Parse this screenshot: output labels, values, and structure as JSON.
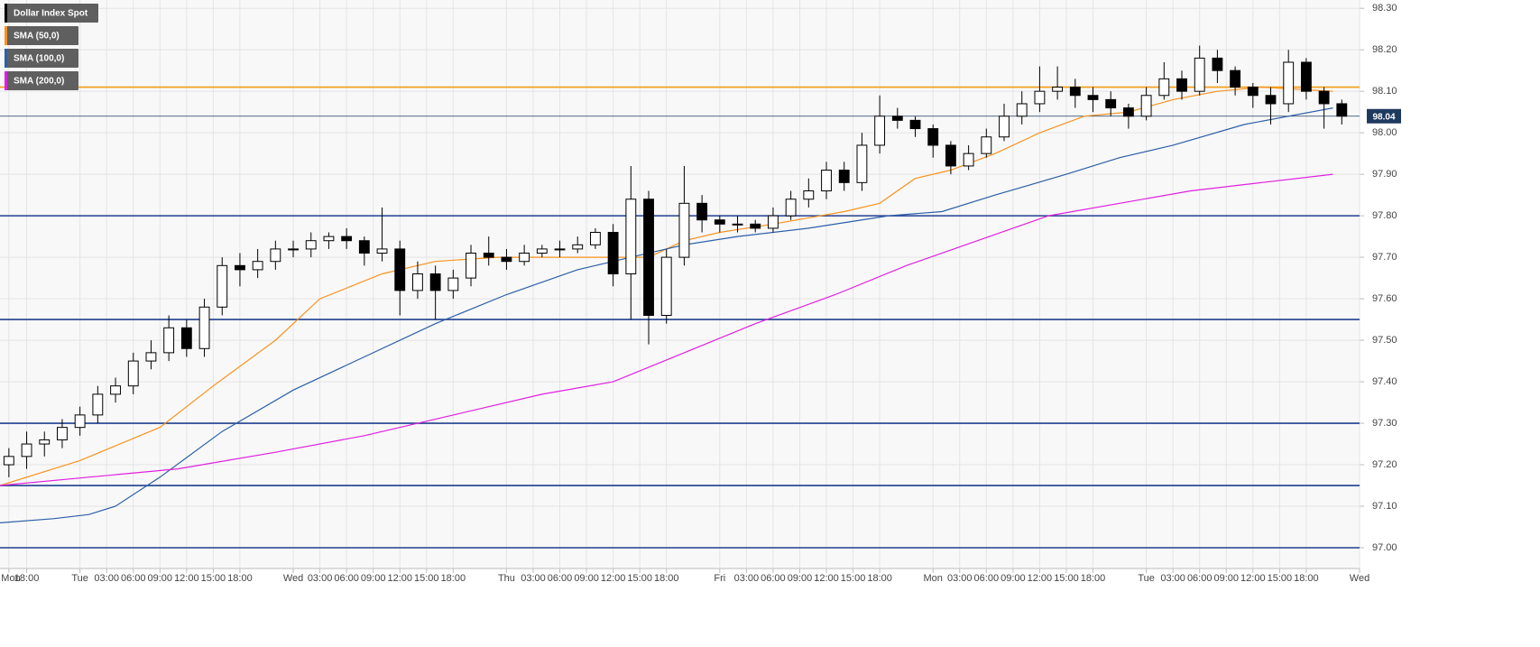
{
  "chart_data": {
    "type": "candlestick",
    "name": "Dollar Index Spot",
    "color": "#000000",
    "xlim": [
      15,
      168
    ],
    "ylim": [
      96.95,
      98.32
    ],
    "grid": true,
    "xticks": [
      {
        "value": 16,
        "label": "Mon"
      },
      {
        "value": 18,
        "label": "18:00"
      },
      {
        "value": 24,
        "label": "Tue"
      },
      {
        "value": 27,
        "label": "03:00"
      },
      {
        "value": 30,
        "label": "06:00"
      },
      {
        "value": 33,
        "label": "09:00"
      },
      {
        "value": 36,
        "label": "12:00"
      },
      {
        "value": 39,
        "label": "15:00"
      },
      {
        "value": 42,
        "label": "18:00"
      },
      {
        "value": 48,
        "label": "Wed"
      },
      {
        "value": 51,
        "label": "03:00"
      },
      {
        "value": 54,
        "label": "06:00"
      },
      {
        "value": 57,
        "label": "09:00"
      },
      {
        "value": 60,
        "label": "12:00"
      },
      {
        "value": 63,
        "label": "15:00"
      },
      {
        "value": 66,
        "label": "18:00"
      },
      {
        "value": 72,
        "label": "Thu"
      },
      {
        "value": 75,
        "label": "03:00"
      },
      {
        "value": 78,
        "label": "06:00"
      },
      {
        "value": 81,
        "label": "09:00"
      },
      {
        "value": 84,
        "label": "12:00"
      },
      {
        "value": 87,
        "label": "15:00"
      },
      {
        "value": 90,
        "label": "18:00"
      },
      {
        "value": 96,
        "label": "Fri"
      },
      {
        "value": 99,
        "label": "03:00"
      },
      {
        "value": 102,
        "label": "06:00"
      },
      {
        "value": 105,
        "label": "09:00"
      },
      {
        "value": 108,
        "label": "12:00"
      },
      {
        "value": 111,
        "label": "15:00"
      },
      {
        "value": 114,
        "label": "18:00"
      },
      {
        "value": 120,
        "label": "Mon"
      },
      {
        "value": 123,
        "label": "03:00"
      },
      {
        "value": 126,
        "label": "06:00"
      },
      {
        "value": 129,
        "label": "09:00"
      },
      {
        "value": 132,
        "label": "12:00"
      },
      {
        "value": 135,
        "label": "15:00"
      },
      {
        "value": 138,
        "label": "18:00"
      },
      {
        "value": 144,
        "label": "Tue"
      },
      {
        "value": 147,
        "label": "03:00"
      },
      {
        "value": 150,
        "label": "06:00"
      },
      {
        "value": 153,
        "label": "09:00"
      },
      {
        "value": 156,
        "label": "12:00"
      },
      {
        "value": 159,
        "label": "15:00"
      },
      {
        "value": 162,
        "label": "18:00"
      },
      {
        "value": 168,
        "label": "Wed"
      }
    ],
    "yticks": [
      {
        "value": 98.3,
        "label": "98.30"
      },
      {
        "value": 98.2,
        "label": "98.20"
      },
      {
        "value": 98.1,
        "label": "98.10"
      },
      {
        "value": 98.0,
        "label": "98.00"
      },
      {
        "value": 97.9,
        "label": "97.90"
      },
      {
        "value": 97.8,
        "label": "97.80"
      },
      {
        "value": 97.7,
        "label": "97.70"
      },
      {
        "value": 97.6,
        "label": "97.60"
      },
      {
        "value": 97.5,
        "label": "97.50"
      },
      {
        "value": 97.4,
        "label": "97.40"
      },
      {
        "value": 97.3,
        "label": "97.30"
      },
      {
        "value": 97.2,
        "label": "97.20"
      },
      {
        "value": 97.1,
        "label": "97.10"
      },
      {
        "value": 97.0,
        "label": "97.00"
      }
    ],
    "x": [
      16,
      18,
      20,
      22,
      24,
      26,
      28,
      30,
      32,
      34,
      36,
      38,
      40,
      42,
      44,
      46,
      48,
      50,
      52,
      54,
      56,
      58,
      60,
      62,
      64,
      66,
      68,
      70,
      72,
      74,
      76,
      78,
      80,
      82,
      84,
      86,
      88,
      90,
      92,
      94,
      96,
      98,
      100,
      102,
      104,
      106,
      108,
      110,
      112,
      114,
      116,
      118,
      120,
      122,
      124,
      126,
      128,
      130,
      132,
      134,
      136,
      138,
      140,
      142,
      144,
      146,
      148,
      150,
      152,
      154,
      156,
      158,
      160,
      162,
      164,
      166
    ],
    "open": [
      97.2,
      97.22,
      97.25,
      97.26,
      97.29,
      97.32,
      97.37,
      97.39,
      97.45,
      97.47,
      97.53,
      97.48,
      97.58,
      97.68,
      97.67,
      97.69,
      97.72,
      97.72,
      97.74,
      97.75,
      97.74,
      97.71,
      97.72,
      97.62,
      97.66,
      97.62,
      97.65,
      97.71,
      97.7,
      97.69,
      97.71,
      97.72,
      97.72,
      97.73,
      97.76,
      97.66,
      97.84,
      97.56,
      97.7,
      97.83,
      97.79,
      97.78,
      97.78,
      97.77,
      97.8,
      97.84,
      97.86,
      97.91,
      97.88,
      97.97,
      98.04,
      98.03,
      98.01,
      97.97,
      97.92,
      97.95,
      97.99,
      98.04,
      98.07,
      98.1,
      98.11,
      98.09,
      98.08,
      98.06,
      98.04,
      98.09,
      98.13,
      98.1,
      98.18,
      98.15,
      98.11,
      98.09,
      98.07,
      98.17,
      98.1,
      98.07
    ],
    "high": [
      97.24,
      97.28,
      97.28,
      97.31,
      97.34,
      97.39,
      97.41,
      97.47,
      97.5,
      97.56,
      97.55,
      97.6,
      97.7,
      97.71,
      97.72,
      97.74,
      97.74,
      97.76,
      97.76,
      97.77,
      97.75,
      97.82,
      97.74,
      97.69,
      97.68,
      97.67,
      97.73,
      97.75,
      97.72,
      97.73,
      97.73,
      97.74,
      97.75,
      97.77,
      97.78,
      97.92,
      97.86,
      97.72,
      97.92,
      97.85,
      97.8,
      97.8,
      97.79,
      97.82,
      97.86,
      97.89,
      97.93,
      97.93,
      98.0,
      98.09,
      98.06,
      98.04,
      98.02,
      97.98,
      97.97,
      98.01,
      98.07,
      98.1,
      98.16,
      98.16,
      98.13,
      98.11,
      98.1,
      98.07,
      98.11,
      98.17,
      98.15,
      98.21,
      98.2,
      98.16,
      98.12,
      98.11,
      98.2,
      98.18,
      98.11,
      98.08
    ],
    "low": [
      97.17,
      97.19,
      97.22,
      97.24,
      97.27,
      97.3,
      97.35,
      97.37,
      97.43,
      97.45,
      97.46,
      97.46,
      97.56,
      97.63,
      97.65,
      97.67,
      97.7,
      97.7,
      97.72,
      97.72,
      97.68,
      97.69,
      97.56,
      97.6,
      97.55,
      97.6,
      97.63,
      97.68,
      97.67,
      97.68,
      97.7,
      97.7,
      97.71,
      97.72,
      97.63,
      97.55,
      97.49,
      97.54,
      97.68,
      97.76,
      97.76,
      97.76,
      97.76,
      97.76,
      97.79,
      97.82,
      97.84,
      97.86,
      97.86,
      97.95,
      98.01,
      97.99,
      97.94,
      97.9,
      97.91,
      97.94,
      97.98,
      98.02,
      98.05,
      98.08,
      98.06,
      98.05,
      98.04,
      98.01,
      98.03,
      98.08,
      98.08,
      98.09,
      98.12,
      98.09,
      98.06,
      98.02,
      98.05,
      98.08,
      98.01,
      98.02
    ],
    "close": [
      97.22,
      97.25,
      97.26,
      97.29,
      97.32,
      97.37,
      97.39,
      97.45,
      97.47,
      97.53,
      97.48,
      97.58,
      97.68,
      97.67,
      97.69,
      97.72,
      97.72,
      97.74,
      97.75,
      97.74,
      97.71,
      97.72,
      97.62,
      97.66,
      97.62,
      97.65,
      97.71,
      97.7,
      97.69,
      97.71,
      97.72,
      97.72,
      97.73,
      97.76,
      97.66,
      97.84,
      97.56,
      97.7,
      97.83,
      97.79,
      97.78,
      97.78,
      97.77,
      97.8,
      97.84,
      97.86,
      97.91,
      97.88,
      97.97,
      98.04,
      98.03,
      98.01,
      97.97,
      97.92,
      97.95,
      97.99,
      98.04,
      98.07,
      98.1,
      98.11,
      98.09,
      98.08,
      98.06,
      98.04,
      98.09,
      98.13,
      98.1,
      98.18,
      98.15,
      98.11,
      98.09,
      98.07,
      98.17,
      98.1,
      98.07,
      98.04
    ],
    "overlays": [
      {
        "name": "SMA (50,0)",
        "color": "#f7931e",
        "x": [
          15,
          24,
          33,
          39,
          46,
          51,
          58,
          64,
          71,
          78,
          84,
          88,
          92,
          96,
          102,
          110,
          114,
          118,
          122,
          127,
          132,
          137,
          142,
          147,
          152,
          157,
          165
        ],
        "values": [
          97.15,
          97.21,
          97.29,
          97.39,
          97.5,
          97.6,
          97.66,
          97.69,
          97.7,
          97.7,
          97.7,
          97.7,
          97.74,
          97.76,
          97.78,
          97.81,
          97.83,
          97.89,
          97.91,
          97.95,
          98.0,
          98.04,
          98.05,
          98.08,
          98.1,
          98.11,
          98.1
        ]
      },
      {
        "name": "SMA (100,0)",
        "color": "#2d5fa8",
        "x": [
          15,
          21,
          25,
          28,
          33,
          40,
          48,
          56,
          64,
          72,
          80,
          86,
          92,
          98,
          106,
          115,
          121,
          127,
          135,
          141,
          147,
          155,
          165
        ],
        "values": [
          97.06,
          97.07,
          97.08,
          97.1,
          97.17,
          97.28,
          97.38,
          97.46,
          97.54,
          97.61,
          97.67,
          97.7,
          97.73,
          97.75,
          97.77,
          97.8,
          97.81,
          97.85,
          97.9,
          97.94,
          97.97,
          98.02,
          98.06
        ]
      },
      {
        "name": "SMA (200,0)",
        "color": "#e020e0",
        "x": [
          15,
          25,
          35,
          46,
          56,
          66,
          76,
          84,
          92,
          100,
          109,
          117,
          125,
          133,
          141,
          149,
          157,
          165
        ],
        "values": [
          97.15,
          97.17,
          97.19,
          97.23,
          97.27,
          97.32,
          97.37,
          97.4,
          97.47,
          97.54,
          97.61,
          97.68,
          97.74,
          97.8,
          97.83,
          97.86,
          97.88,
          97.9
        ]
      }
    ],
    "levels": [
      98.11,
      97.8,
      97.55,
      97.3,
      97.15,
      97.0
    ],
    "level_colors": [
      "#f39c12",
      "#1f3f8f",
      "#1f3f8f",
      "#1f3f8f",
      "#1f3f8f",
      "#1f3f8f"
    ],
    "last_price": 98.04,
    "last_price_color": "#1f3a5f"
  }
}
